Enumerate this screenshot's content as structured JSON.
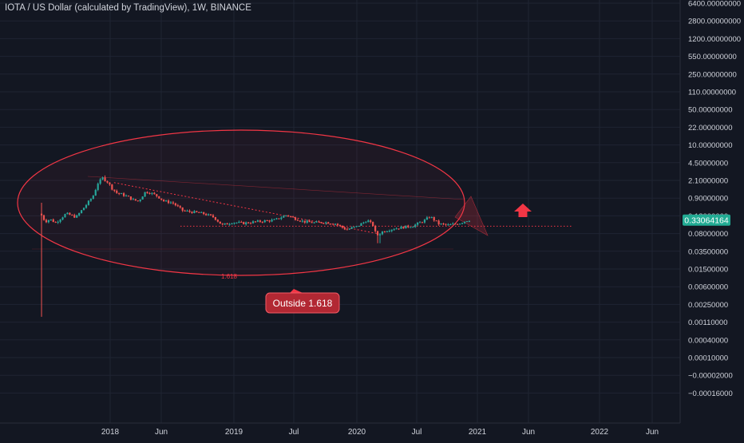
{
  "header": {
    "title": "IOTA / US Dollar (calculated by TradingView), 1W, BINANCE"
  },
  "chart_data": {
    "type": "candlestick",
    "title": "IOTA / US Dollar (calculated by TradingView), 1W, BINANCE",
    "symbol": "IOTA / US Dollar",
    "interval": "1W",
    "exchange": "BINANCE",
    "current_price": "0.33064164",
    "y_axis": {
      "tick_labels": [
        "6400.00000000",
        "2800.00000000",
        "1200.00000000",
        "550.00000000",
        "250.00000000",
        "110.00000000",
        "50.00000000",
        "22.00000000",
        "10.00000000",
        "4.50000000",
        "2.10000000",
        "0.90000000",
        "0.18000000",
        "0.08000000",
        "0.03500000",
        "0.01500000",
        "0.00600000",
        "0.00250000",
        "0.00110000",
        "0.00040000",
        "0.00010000",
        "−0.00002000",
        "−0.00016000"
      ]
    },
    "x_axis": {
      "tick_labels": [
        "2018",
        "Jun",
        "2019",
        "Jul",
        "2020",
        "Jul",
        "2021",
        "Jun",
        "2022",
        "Jun"
      ]
    },
    "price_path": [
      [
        "2017-06-13",
        0.5
      ],
      [
        "2017-06-20",
        0.45
      ],
      [
        "2017-07-01",
        0.3
      ],
      [
        "2017-07-15",
        0.35
      ],
      [
        "2017-08-01",
        0.28
      ],
      [
        "2017-09-01",
        0.5
      ],
      [
        "2017-10-01",
        0.4
      ],
      [
        "2017-11-01",
        0.9
      ],
      [
        "2017-11-20",
        1.5
      ],
      [
        "2017-12-05",
        3.5
      ],
      [
        "2017-12-19",
        4.8
      ],
      [
        "2018-01-02",
        3.8
      ],
      [
        "2018-01-16",
        2.5
      ],
      [
        "2018-02-01",
        1.8
      ],
      [
        "2018-02-15",
        1.7
      ],
      [
        "2018-03-01",
        1.5
      ],
      [
        "2018-03-20",
        1.2
      ],
      [
        "2018-04-05",
        1.1
      ],
      [
        "2018-04-25",
        2.0
      ],
      [
        "2018-05-10",
        1.9
      ],
      [
        "2018-06-01",
        1.5
      ],
      [
        "2018-06-20",
        1.1
      ],
      [
        "2018-07-15",
        1.0
      ],
      [
        "2018-08-15",
        0.6
      ],
      [
        "2018-09-15",
        0.55
      ],
      [
        "2018-10-15",
        0.5
      ],
      [
        "2018-11-15",
        0.4
      ],
      [
        "2018-12-10",
        0.24
      ],
      [
        "2019-01-10",
        0.29
      ],
      [
        "2019-02-10",
        0.27
      ],
      [
        "2019-03-10",
        0.29
      ],
      [
        "2019-04-10",
        0.31
      ],
      [
        "2019-05-15",
        0.33
      ],
      [
        "2019-06-20",
        0.46
      ],
      [
        "2019-07-10",
        0.38
      ],
      [
        "2019-08-10",
        0.3
      ],
      [
        "2019-09-10",
        0.28
      ],
      [
        "2019-10-10",
        0.29
      ],
      [
        "2019-11-10",
        0.27
      ],
      [
        "2019-12-15",
        0.18
      ],
      [
        "2020-01-15",
        0.22
      ],
      [
        "2020-02-15",
        0.33
      ],
      [
        "2020-03-05",
        0.23
      ],
      [
        "2020-03-13",
        0.12
      ],
      [
        "2020-04-01",
        0.16
      ],
      [
        "2020-05-01",
        0.19
      ],
      [
        "2020-06-01",
        0.21
      ],
      [
        "2020-07-01",
        0.23
      ],
      [
        "2020-08-05",
        0.33
      ],
      [
        "2020-08-20",
        0.42
      ],
      [
        "2020-09-15",
        0.26
      ],
      [
        "2020-10-15",
        0.24
      ],
      [
        "2020-11-15",
        0.27
      ],
      [
        "2020-12-10",
        0.33
      ]
    ],
    "wick_extremes": [
      {
        "date": "2017-06-13",
        "low": 0.0007
      },
      {
        "date": "2017-06-13",
        "high": 1.0
      },
      {
        "date": "2017-12-19",
        "high": 5.7
      },
      {
        "date": "2020-03-13",
        "low": 0.076
      }
    ],
    "annotations": {
      "ellipse_label": "1.618",
      "callout_text": "Outside 1.618",
      "horizontal_level": 0.225,
      "trendline": {
        "from": [
          "2018-01-15",
          3.6
        ],
        "to": [
          "2020-03-10",
          0.14
        ]
      },
      "arrow_direction": "up"
    },
    "colors": {
      "background": "#131722",
      "up": "#26a69a",
      "down": "#ef5350",
      "annotation": "#f23645",
      "price_label": "#22ab94",
      "text": "#d1d4dc",
      "grid": "#1f2433"
    }
  }
}
